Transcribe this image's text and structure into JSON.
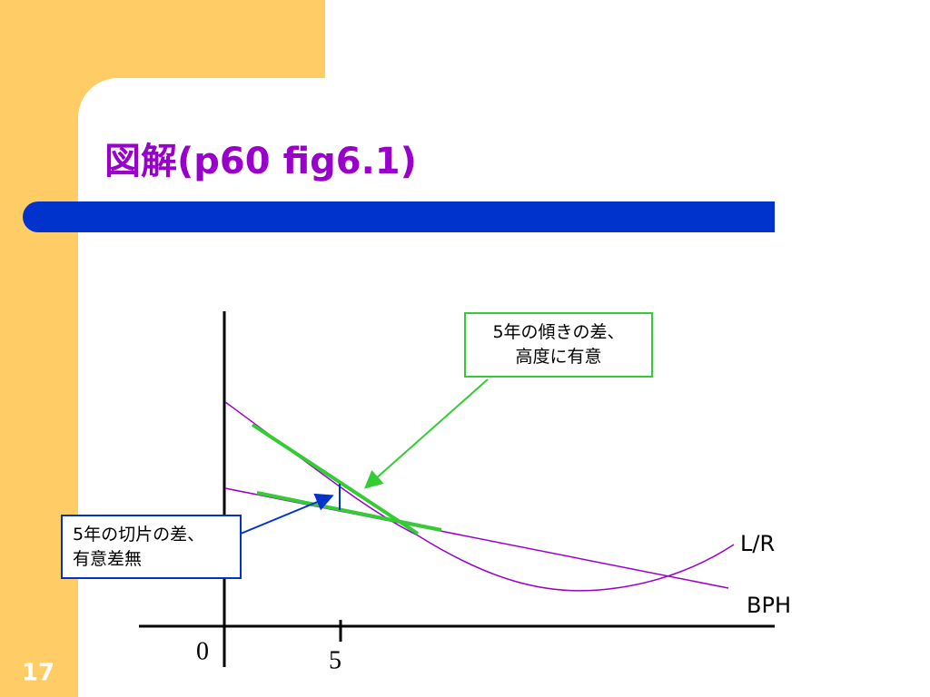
{
  "header": {
    "title": "図解(p60 fig6.1)"
  },
  "slide_number": "17",
  "callouts": [
    {
      "lines": [
        "5年の傾きの差、",
        "高度に有意"
      ]
    },
    {
      "lines": [
        "5年の切片の差、",
        "有意差無"
      ]
    }
  ],
  "curve_labels": [
    "L/R",
    "BPH"
  ],
  "axis_labels": [
    "0",
    "5"
  ]
}
